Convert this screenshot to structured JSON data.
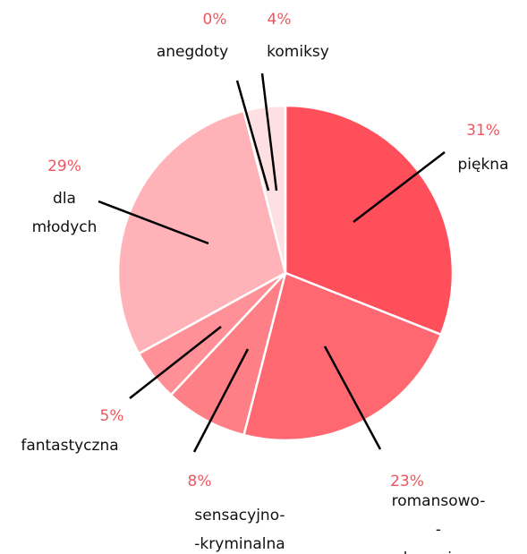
{
  "chart_data": {
    "type": "pie",
    "categories": [
      "piękna",
      "romansowo-\n-obyczajowa",
      "sensacyjno-\n-kryminalna",
      "fantastyczna",
      "dla\nmłodych",
      "anegdoty",
      "komiksy"
    ],
    "values": [
      31,
      23,
      8,
      5,
      29,
      0,
      4
    ],
    "value_labels": [
      "31%",
      "23%",
      "8%",
      "5%",
      "29%",
      "0%",
      "4%"
    ],
    "colors": [
      "#ff4f5a",
      "#ff6870",
      "#ff7f86",
      "#ff9097",
      "#ffb3b8",
      "#ffd3d6",
      "#ffe0e2"
    ]
  }
}
